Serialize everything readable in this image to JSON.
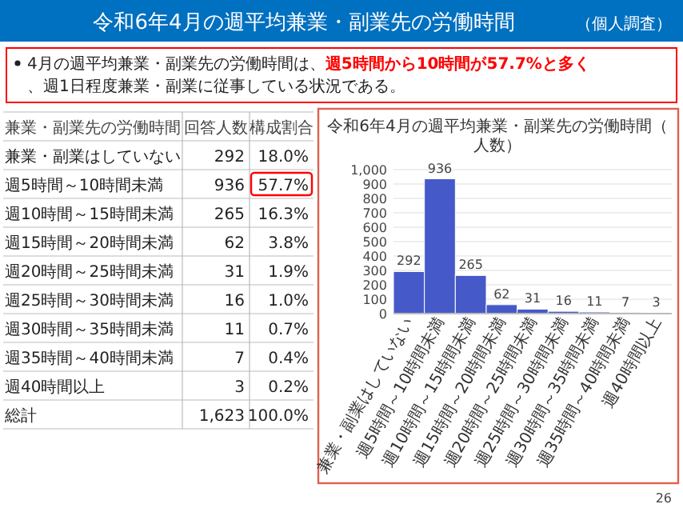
{
  "chart_data": {
    "type": "bar",
    "title": "令和6年4月の週平均兼業・副業先の労働時間",
    "subtitle": "令和6年4月の週平均兼業・副業先の労働時間（人数）",
    "categories": [
      "兼業・副業はしていない",
      "週5時間～10時間未満",
      "週10時間～15時間未満",
      "週15時間～20時間未満",
      "週20時間～25時間未満",
      "週25時間～30時間未満",
      "週30時間～35時間未満",
      "週35時間～40時間未満",
      "週40時間以上"
    ],
    "values": [
      292,
      936,
      265,
      62,
      31,
      16,
      11,
      7,
      3
    ],
    "color": "#4659c9",
    "data_labels": true,
    "grid": "y",
    "ylim": [
      0,
      1000
    ],
    "yticks": [
      0,
      100,
      200,
      300,
      400,
      500,
      600,
      700,
      800,
      900,
      {
        "value": 1000,
        "label": "1,000"
      }
    ],
    "annotations": [
      "（個人調査）",
      "4月の週平均兼業・副業先の労働時間は、",
      "週5時間から10時間が57.7%と多く",
      "、週1日程度兼業・副業に従事している状況である。",
      "兼業・副業先の労働時間",
      "回答人数",
      "構成割合",
      "総計",
      "1,623",
      "100.0%",
      "18.0%",
      "57.7%",
      "16.3%",
      "3.8%",
      "1.9%",
      "1.0%",
      "0.7%",
      "0.4%",
      "0.2%",
      "26",
      "292",
      "936",
      "265",
      "62",
      "31",
      "16",
      "11",
      "7",
      "3"
    ]
  }
}
